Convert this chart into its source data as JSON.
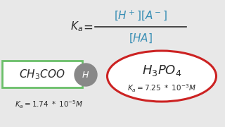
{
  "bg_color": "#e8e8e8",
  "formula_black": "#2a2a2a",
  "formula_color": "#3a8fb5",
  "left_box_color": "#6abf69",
  "right_ellipse_color": "#cc2222",
  "ball_color": "#888888",
  "text_color": "#2a2a2a",
  "white": "#ffffff"
}
